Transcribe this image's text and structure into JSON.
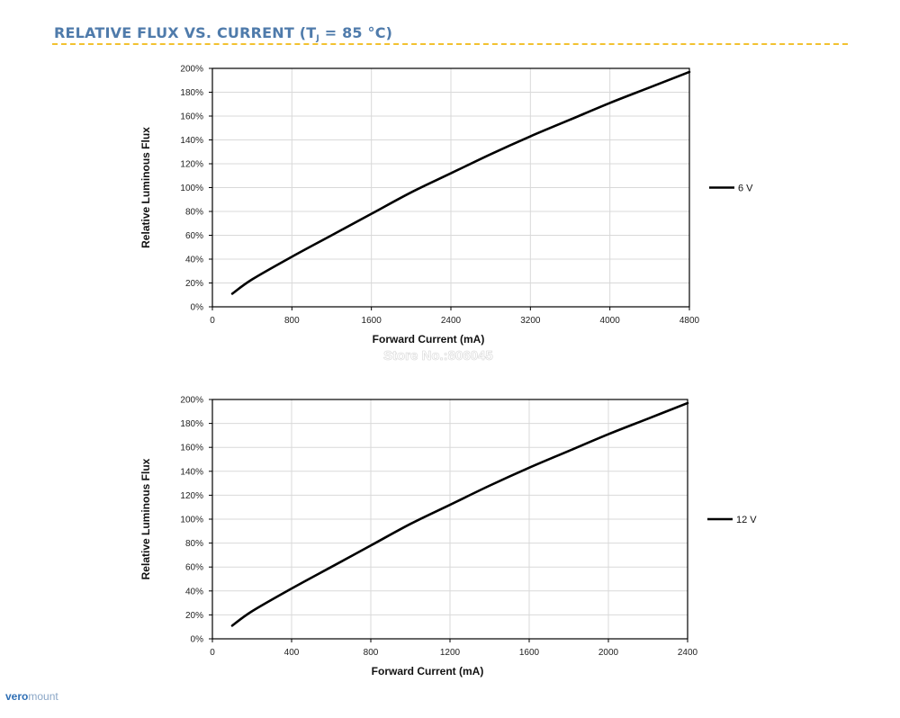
{
  "page": {
    "title_main": "RELATIVE FLUX VS. CURRENT (T",
    "title_sub": "J",
    "title_tail": " = 85 °C)"
  },
  "watermark": "Store No.:806045",
  "logo": {
    "part1": "vero",
    "part2": "mount"
  },
  "colors": {
    "title": "#4f7bab",
    "rule": "#f2c230",
    "line": "#000000",
    "grid": "#d9d9d9"
  },
  "chart_data": [
    {
      "type": "line",
      "title": "",
      "xlabel": "Forward Current (mA)",
      "ylabel": "Relative Luminous Flux",
      "xlim": [
        0,
        4800
      ],
      "ylim": [
        0,
        200
      ],
      "xticks": [
        0,
        800,
        1600,
        2400,
        3200,
        4000,
        4800
      ],
      "yticks": [
        0,
        20,
        40,
        60,
        80,
        100,
        120,
        140,
        160,
        180,
        200
      ],
      "xtick_labels": [
        "0",
        "800",
        "1600",
        "2400",
        "3200",
        "4000",
        "4800"
      ],
      "ytick_labels": [
        "0%",
        "20%",
        "40%",
        "60%",
        "80%",
        "100%",
        "120%",
        "140%",
        "160%",
        "180%",
        "200%"
      ],
      "grid": true,
      "legend": "right",
      "series": [
        {
          "name": "6 V",
          "x": [
            200,
            400,
            800,
            1200,
            1600,
            2000,
            2400,
            2800,
            3200,
            3600,
            4000,
            4400,
            4800
          ],
          "y": [
            11,
            23,
            42,
            60,
            78,
            96,
            112,
            128,
            143,
            157,
            171,
            184,
            197
          ]
        }
      ]
    },
    {
      "type": "line",
      "title": "",
      "xlabel": "Forward Current (mA)",
      "ylabel": "Relative Luminous Flux",
      "xlim": [
        0,
        2400
      ],
      "ylim": [
        0,
        200
      ],
      "xticks": [
        0,
        400,
        800,
        1200,
        1600,
        2000,
        2400
      ],
      "yticks": [
        0,
        20,
        40,
        60,
        80,
        100,
        120,
        140,
        160,
        180,
        200
      ],
      "xtick_labels": [
        "0",
        "400",
        "800",
        "1200",
        "1600",
        "2000",
        "2400"
      ],
      "ytick_labels": [
        "0%",
        "20%",
        "40%",
        "60%",
        "80%",
        "100%",
        "120%",
        "140%",
        "160%",
        "180%",
        "200%"
      ],
      "grid": true,
      "legend": "right",
      "series": [
        {
          "name": "12 V",
          "x": [
            100,
            200,
            400,
            600,
            800,
            1000,
            1200,
            1400,
            1600,
            1800,
            2000,
            2200,
            2400
          ],
          "y": [
            11,
            23,
            42,
            60,
            78,
            96,
            112,
            128,
            143,
            157,
            171,
            184,
            197
          ]
        }
      ]
    }
  ]
}
